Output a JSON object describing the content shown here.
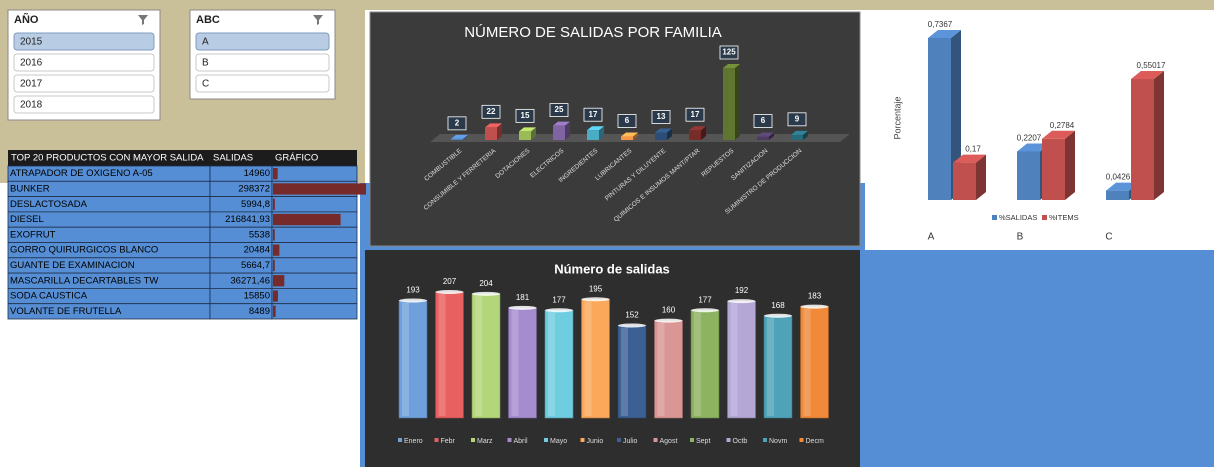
{
  "slicers": [
    {
      "title": "AÑO",
      "items": [
        "2015",
        "2016",
        "2017",
        "2018"
      ],
      "selected": 0
    },
    {
      "title": "ABC",
      "items": [
        "A",
        "B",
        "C"
      ],
      "selected": 0
    }
  ],
  "table": {
    "columns": [
      "TOP 20 PRODUCTOS CON MAYOR SALIDA",
      "SALIDAS",
      "GRÁFICO"
    ],
    "rows": [
      "ATRAPADOR DE OXIGENO A-05",
      "BUNKER",
      "DESLACTOSADA",
      "DIESEL",
      "EXOFRUT",
      "GORRO QUIRURGICOS BLANCO",
      "GUANTE DE EXAMINACION",
      "MASCARILLA DECARTABLES TW",
      "SODA CAUSTICA",
      "VOLANTE DE FRUTELLA"
    ],
    "salidas": [
      14960,
      298372,
      5994.8,
      216841.93,
      5538,
      20484,
      5664.7,
      36271.46,
      15850,
      8489
    ],
    "salidas_labels": [
      "14960",
      "298372",
      "5994,8",
      "216841,93",
      "5538",
      "20484",
      "5664,7",
      "36271,46",
      "15850",
      "8489"
    ],
    "bar_color": "#772a2a"
  },
  "chart_data": [
    {
      "type": "bar3d",
      "title": "NÚMERO DE SALIDAS POR FAMILIA",
      "categories": [
        "COMBUSTIBLE",
        "CONSUMIBLE Y FERRETERIA",
        "DOTACIONES",
        "ELECTRICOS",
        "INGREDIENTES",
        "LUBRICANTES",
        "PINTURAS Y DILUYENTE",
        "QUIMICOS E INSUMOS MANT/PTAR",
        "REPUESTOS",
        "SANITIZACION",
        "SUMINISTRO DE PRODUCCION"
      ],
      "values": [
        2,
        22,
        15,
        25,
        17,
        6,
        13,
        17,
        125,
        6,
        9
      ],
      "colors": [
        "#4f81bd",
        "#c0504d",
        "#9bbb59",
        "#8064a2",
        "#4bacc6",
        "#f79646",
        "#2c4d75",
        "#772c2a",
        "#5f7530",
        "#4d3b62",
        "#276a7c"
      ]
    },
    {
      "type": "bar",
      "title": "Número de salidas",
      "categories": [
        "Enero",
        "Febr",
        "Marz",
        "Abril",
        "Mayo",
        "Junio",
        "Julio",
        "Agost",
        "Sept",
        "Octb",
        "Novm",
        "Decm"
      ],
      "values": [
        193,
        207,
        204,
        181,
        177,
        195,
        152,
        160,
        177,
        192,
        168,
        183
      ],
      "colors": [
        "#6fa0dc",
        "#e86060",
        "#b3d67a",
        "#a58ccf",
        "#6fcde0",
        "#fba85a",
        "#3c5f94",
        "#d99694",
        "#8db260",
        "#b4a7d6",
        "#4fa3b8",
        "#f08a3a"
      ]
    },
    {
      "type": "grouped3d",
      "y_label": "Porcentaje",
      "categories": [
        "A",
        "B",
        "C"
      ],
      "series": [
        {
          "name": "%SALIDAS",
          "color": "#4f81bd",
          "values": [
            0.7367,
            0.2207,
            0.0426
          ],
          "value_labels": [
            "0,7367",
            "0,2207",
            "0,0426"
          ]
        },
        {
          "name": "%ITEMS",
          "color": "#c0504d",
          "values": [
            0.17,
            0.2784,
            0.55017
          ],
          "value_labels": [
            "0,17",
            "0,2784",
            "0,55017"
          ]
        }
      ]
    }
  ]
}
